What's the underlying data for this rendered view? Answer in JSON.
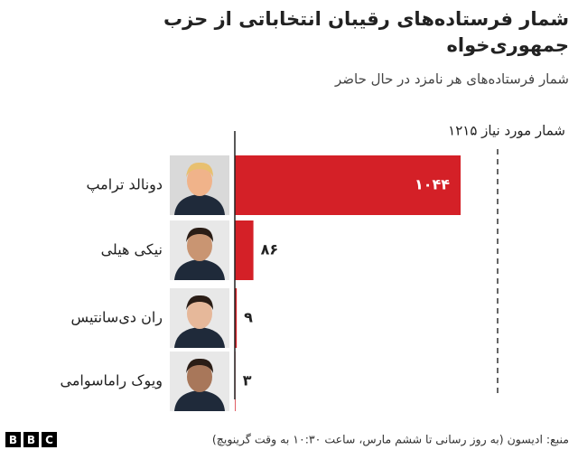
{
  "chart_data": {
    "type": "bar",
    "orientation": "horizontal",
    "title": [
      "شمار فرستاده‌های رقیبان انتخاباتی از حزب",
      "جمهوری‌خواه"
    ],
    "subtitle": "شمار فرستاده‌های هر نامزد در حال حاضر",
    "categories": [
      "دونالد ترامپ",
      "نیکی هیلی",
      "ران دی‌سانتیس",
      "ویوک راماسوامی"
    ],
    "values": [
      1044,
      86,
      9,
      3
    ],
    "value_labels": [
      "۱۰۴۴",
      "۸۶",
      "۹",
      "۳"
    ],
    "color": "#d42027",
    "xlim": [
      0,
      1500
    ],
    "threshold": {
      "value": 1215,
      "label": "شمار مورد نیاز ۱۲۱۵"
    },
    "source": "منبع: ادیسون (به روز رسانی تا ششم مارس، ساعت ۱۰:۳۰ به وقت گرینویچ)",
    "logo": [
      "B",
      "B",
      "C"
    ]
  }
}
